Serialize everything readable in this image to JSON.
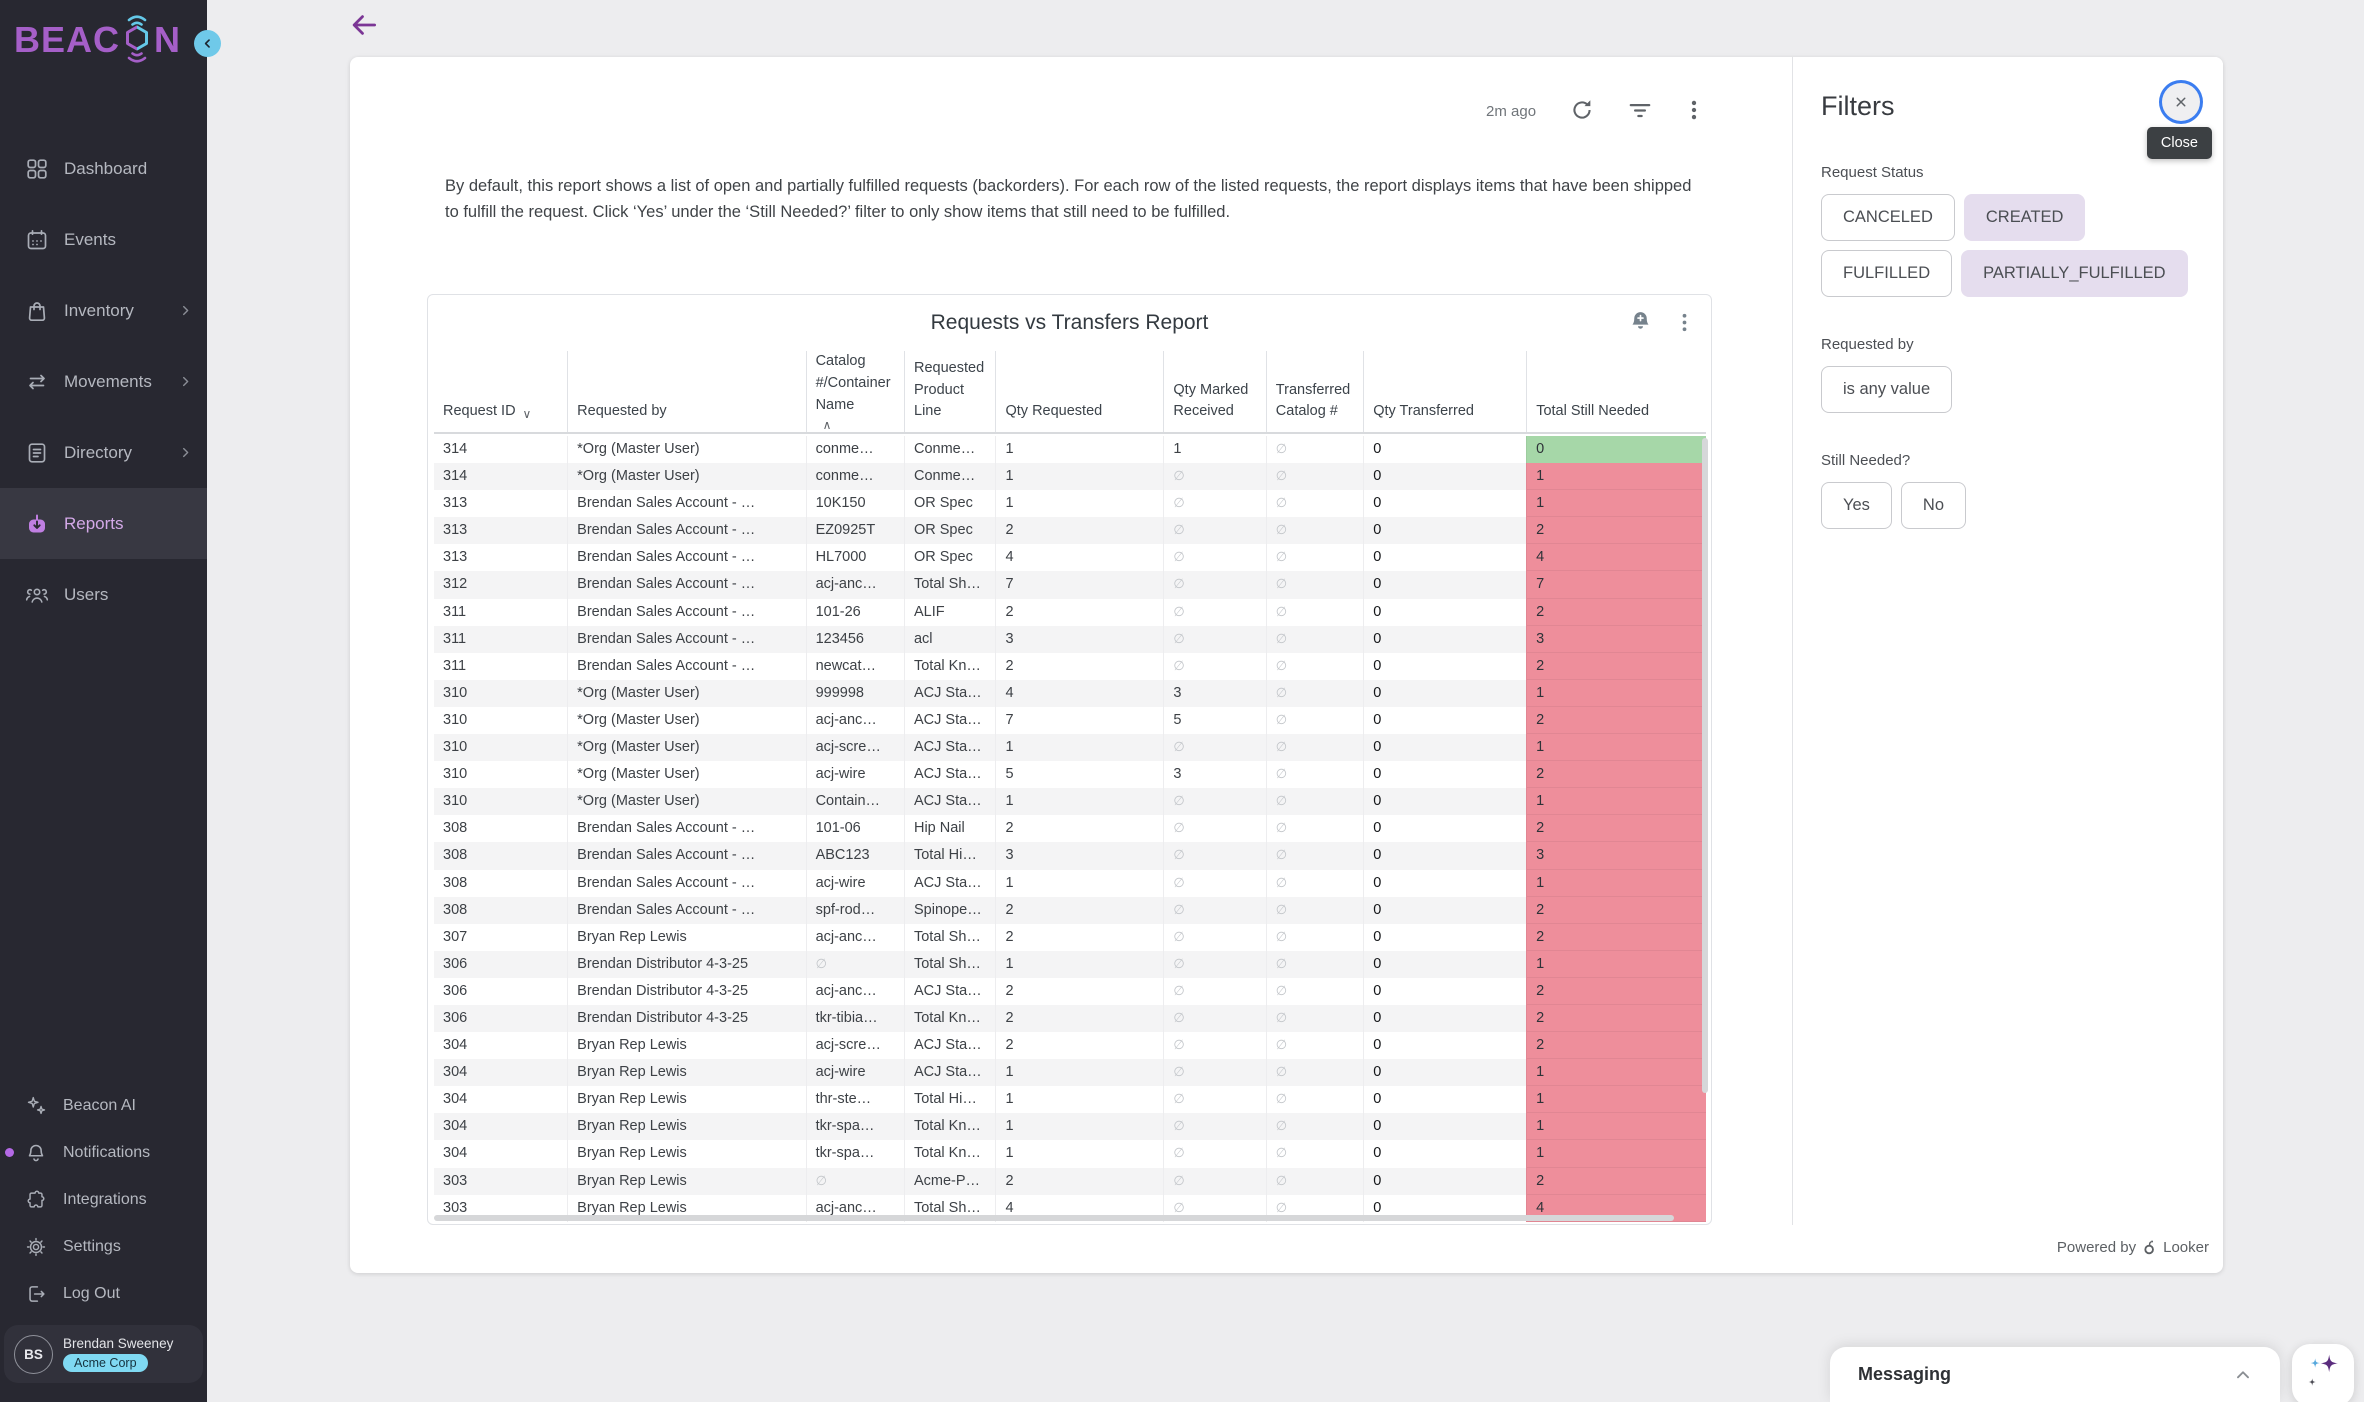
{
  "sidebar": {
    "logo_left": "BEAC",
    "logo_right": "N",
    "items": [
      {
        "label": "Dashboard",
        "icon": "dashboard-icon",
        "chevron": false,
        "active": false
      },
      {
        "label": "Events",
        "icon": "calendar-icon",
        "chevron": false,
        "active": false
      },
      {
        "label": "Inventory",
        "icon": "bag-icon",
        "chevron": true,
        "active": false
      },
      {
        "label": "Movements",
        "icon": "transfer-arrows-icon",
        "chevron": true,
        "active": false
      },
      {
        "label": "Directory",
        "icon": "document-icon",
        "chevron": true,
        "active": false
      },
      {
        "label": "Reports",
        "icon": "reports-tray-icon",
        "chevron": false,
        "active": true
      },
      {
        "label": "Users",
        "icon": "users-icon",
        "chevron": false,
        "active": false
      }
    ],
    "bottom_items": [
      {
        "label": "Beacon AI",
        "icon": "sparkles-icon",
        "dot": false
      },
      {
        "label": "Notifications",
        "icon": "bell-icon",
        "dot": true
      },
      {
        "label": "Integrations",
        "icon": "puzzle-icon",
        "dot": false
      },
      {
        "label": "Settings",
        "icon": "gear-icon",
        "dot": false
      },
      {
        "label": "Log Out",
        "icon": "logout-icon",
        "dot": false
      }
    ],
    "user": {
      "initials": "BS",
      "name": "Brendan Sweeney",
      "org": "Acme Corp"
    }
  },
  "toolbar": {
    "last_updated": "2m ago"
  },
  "report": {
    "description": "By default, this report shows a list of open and partially fulfilled requests (backorders). For each row of the listed requests, the report displays items that have been shipped to fulfill the request. Click ‘Yes’ under the ‘Still Needed?’ filter to only show items that still need to be fulfilled.",
    "tile_title": "Requests vs Transfers Report",
    "powered_by": "Powered by",
    "powered_by_brand": "Looker"
  },
  "table": {
    "null_symbol": "∅",
    "colors": {
      "green": "#a6d7a8",
      "red": "#ee8e9b"
    },
    "columns": [
      {
        "label": "Request ID",
        "sort": "desc"
      },
      {
        "label": "Requested by",
        "sort": null
      },
      {
        "label": "Catalog #/Container Name",
        "sort": "asc"
      },
      {
        "label": "Requested Product Line",
        "sort": null
      },
      {
        "label": "Qty Requested",
        "sort": null
      },
      {
        "label": "Qty Marked Received",
        "sort": null
      },
      {
        "label": "Transferred Catalog #",
        "sort": null
      },
      {
        "label": "Qty Transferred",
        "sort": null
      },
      {
        "label": "Total Still Needed",
        "sort": null
      }
    ],
    "rows": [
      [
        "314",
        "*Org (Master User)",
        "conme…",
        "Conme…",
        "1",
        "1",
        null,
        "0",
        "0",
        "green"
      ],
      [
        "314",
        "*Org (Master User)",
        "conme…",
        "Conme…",
        "1",
        null,
        null,
        "0",
        "1",
        "red"
      ],
      [
        "313",
        "Brendan Sales Account - …",
        "10K150",
        "OR Spec",
        "1",
        null,
        null,
        "0",
        "1",
        "red"
      ],
      [
        "313",
        "Brendan Sales Account - …",
        "EZ0925T",
        "OR Spec",
        "2",
        null,
        null,
        "0",
        "2",
        "red"
      ],
      [
        "313",
        "Brendan Sales Account - …",
        "HL7000",
        "OR Spec",
        "4",
        null,
        null,
        "0",
        "4",
        "red"
      ],
      [
        "312",
        "Brendan Sales Account - …",
        "acj-anc…",
        "Total Sh…",
        "7",
        null,
        null,
        "0",
        "7",
        "red"
      ],
      [
        "311",
        "Brendan Sales Account - …",
        "101-26",
        "ALIF",
        "2",
        null,
        null,
        "0",
        "2",
        "red"
      ],
      [
        "311",
        "Brendan Sales Account - …",
        "123456",
        "acl",
        "3",
        null,
        null,
        "0",
        "3",
        "red"
      ],
      [
        "311",
        "Brendan Sales Account - …",
        "newcat…",
        "Total Kn…",
        "2",
        null,
        null,
        "0",
        "2",
        "red"
      ],
      [
        "310",
        "*Org (Master User)",
        "999998",
        "ACJ Sta…",
        "4",
        "3",
        null,
        "0",
        "1",
        "red"
      ],
      [
        "310",
        "*Org (Master User)",
        "acj-anc…",
        "ACJ Sta…",
        "7",
        "5",
        null,
        "0",
        "2",
        "red"
      ],
      [
        "310",
        "*Org (Master User)",
        "acj-scre…",
        "ACJ Sta…",
        "1",
        null,
        null,
        "0",
        "1",
        "red"
      ],
      [
        "310",
        "*Org (Master User)",
        "acj-wire",
        "ACJ Sta…",
        "5",
        "3",
        null,
        "0",
        "2",
        "red"
      ],
      [
        "310",
        "*Org (Master User)",
        "Contain…",
        "ACJ Sta…",
        "1",
        null,
        null,
        "0",
        "1",
        "red"
      ],
      [
        "308",
        "Brendan Sales Account - …",
        "101-06",
        "Hip Nail",
        "2",
        null,
        null,
        "0",
        "2",
        "red"
      ],
      [
        "308",
        "Brendan Sales Account - …",
        "ABC123",
        "Total Hi…",
        "3",
        null,
        null,
        "0",
        "3",
        "red"
      ],
      [
        "308",
        "Brendan Sales Account - …",
        "acj-wire",
        "ACJ Sta…",
        "1",
        null,
        null,
        "0",
        "1",
        "red"
      ],
      [
        "308",
        "Brendan Sales Account - …",
        "spf-rod…",
        "Spinope…",
        "2",
        null,
        null,
        "0",
        "2",
        "red"
      ],
      [
        "307",
        "Bryan Rep Lewis",
        "acj-anc…",
        "Total Sh…",
        "2",
        null,
        null,
        "0",
        "2",
        "red"
      ],
      [
        "306",
        "Brendan Distributor 4-3-25",
        null,
        "Total Sh…",
        "1",
        null,
        null,
        "0",
        "1",
        "red"
      ],
      [
        "306",
        "Brendan Distributor 4-3-25",
        "acj-anc…",
        "ACJ Sta…",
        "2",
        null,
        null,
        "0",
        "2",
        "red"
      ],
      [
        "306",
        "Brendan Distributor 4-3-25",
        "tkr-tibia…",
        "Total Kn…",
        "2",
        null,
        null,
        "0",
        "2",
        "red"
      ],
      [
        "304",
        "Bryan Rep Lewis",
        "acj-scre…",
        "ACJ Sta…",
        "2",
        null,
        null,
        "0",
        "2",
        "red"
      ],
      [
        "304",
        "Bryan Rep Lewis",
        "acj-wire",
        "ACJ Sta…",
        "1",
        null,
        null,
        "0",
        "1",
        "red"
      ],
      [
        "304",
        "Bryan Rep Lewis",
        "thr-ste…",
        "Total Hi…",
        "1",
        null,
        null,
        "0",
        "1",
        "red"
      ],
      [
        "304",
        "Bryan Rep Lewis",
        "tkr-spa…",
        "Total Kn…",
        "1",
        null,
        null,
        "0",
        "1",
        "red"
      ],
      [
        "304",
        "Bryan Rep Lewis",
        "tkr-spa…",
        "Total Kn…",
        "1",
        null,
        null,
        "0",
        "1",
        "red"
      ],
      [
        "303",
        "Bryan Rep Lewis",
        null,
        "Acme-P…",
        "2",
        null,
        null,
        "0",
        "2",
        "red"
      ],
      [
        "303",
        "Bryan Rep Lewis",
        "acj-anc…",
        "Total Sh…",
        "4",
        null,
        null,
        "0",
        "4",
        "red"
      ]
    ]
  },
  "filters": {
    "title": "Filters",
    "close_tooltip": "Close",
    "sections": [
      {
        "label": "Request Status",
        "chips": [
          {
            "label": "CANCELED",
            "selected": false
          },
          {
            "label": "CREATED",
            "selected": true
          },
          {
            "label": "FULFILLED",
            "selected": false
          },
          {
            "label": "PARTIALLY_FULFILLED",
            "selected": true
          }
        ]
      },
      {
        "label": "Requested by",
        "chips": [
          {
            "label": "is any value",
            "selected": false
          }
        ]
      },
      {
        "label": "Still Needed?",
        "chips": [
          {
            "label": "Yes",
            "selected": false
          },
          {
            "label": "No",
            "selected": false
          }
        ]
      }
    ]
  },
  "messaging": {
    "title": "Messaging"
  }
}
